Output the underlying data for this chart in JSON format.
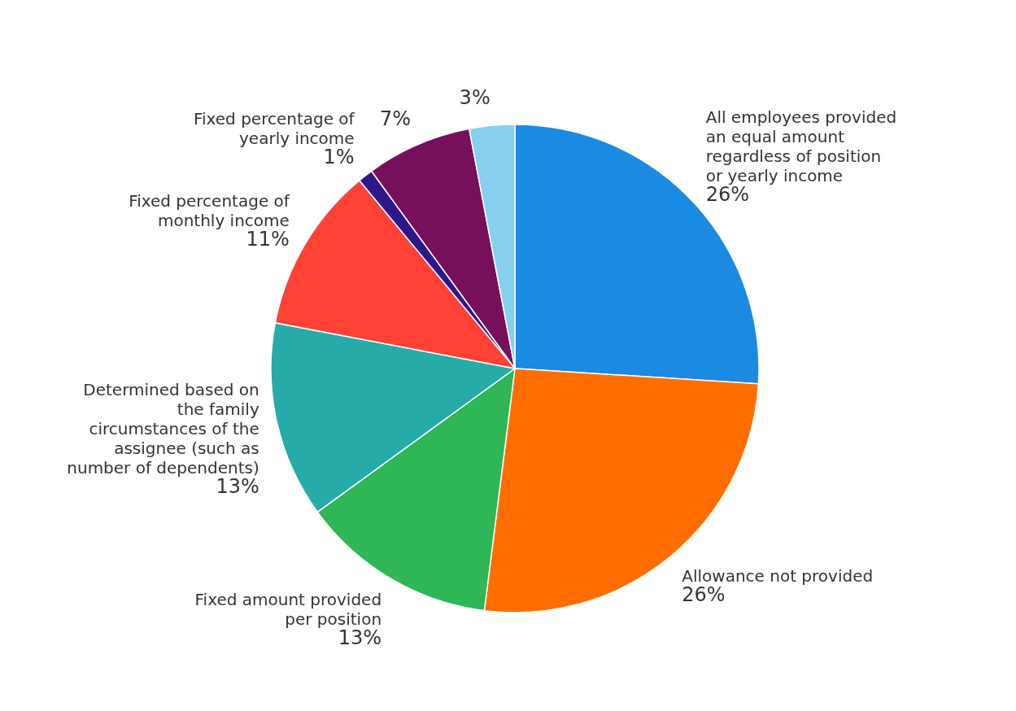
{
  "chart_data": {
    "type": "pie",
    "categories": [
      "All employees provided an equal amount regardless of position or yearly income",
      "Allowance not provided",
      "Fixed amount provided per position",
      "Determined based on the family circumstances of the assignee (such as number of dependents)",
      "Fixed percentage of monthly income",
      "Fixed percentage of yearly income",
      null,
      null
    ],
    "values": [
      26,
      26,
      13,
      13,
      11,
      1,
      7,
      3
    ],
    "value_labels": [
      "26%",
      "26%",
      "13%",
      "13%",
      "11%",
      "1%",
      "7%",
      "3%"
    ],
    "colors": [
      "#1a8ae3",
      "#ff6d00",
      "#2eb657",
      "#27aba8",
      "#ff4136",
      "#2e1889",
      "#760f5c",
      "#87cfef"
    ]
  }
}
